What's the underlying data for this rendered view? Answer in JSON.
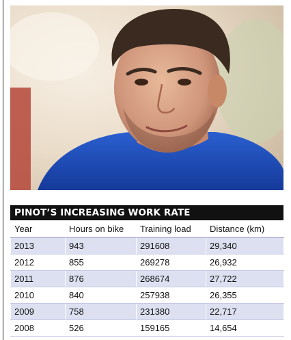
{
  "photo": {
    "subject": "portrait-photo"
  },
  "table": {
    "title": "PINOT’S INCREASING WORK RATE",
    "headers": [
      "Year",
      "Hours on bike",
      "Training load",
      "Distance (km)"
    ],
    "rows": [
      [
        "2013",
        "943",
        "291608",
        "29,340"
      ],
      [
        "2012",
        "855",
        "269278",
        "26,932"
      ],
      [
        "2011",
        "876",
        "268674",
        "27,722"
      ],
      [
        "2010",
        "840",
        "257938",
        "26,355"
      ],
      [
        "2009",
        "758",
        "231380",
        "22,717"
      ],
      [
        "2008",
        "526",
        "159165",
        "14,654"
      ]
    ]
  },
  "colors": {
    "header_bg": "#111111",
    "row_shade": "#dde0f0",
    "shirt": "#1e4fc0"
  }
}
